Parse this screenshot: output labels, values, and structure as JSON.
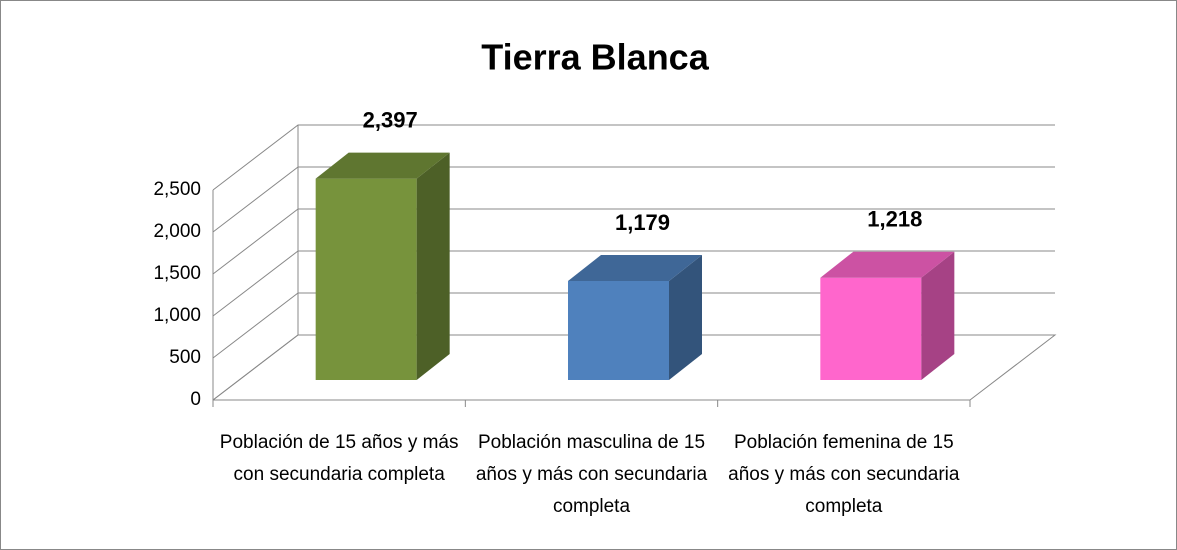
{
  "chart_data": {
    "type": "bar3d",
    "title": "Tierra Blanca",
    "categories": [
      "Población de 15 años y más con secundaria completa",
      "Población masculina de 15 años y más con secundaria completa",
      "Población femenina de 15 años y más con secundaria completa"
    ],
    "values": [
      2397,
      1179,
      1218
    ],
    "value_labels": [
      "2,397",
      "1,179",
      "1,218"
    ],
    "colors": [
      "#77933C",
      "#4F81BD",
      "#FF66CC"
    ],
    "ylim": [
      0,
      2500
    ],
    "yticks": [
      0,
      500,
      {
        "value": 1000,
        "label": "1,000"
      },
      {
        "value": 1500,
        "label": "1,500"
      },
      {
        "value": 2000,
        "label": "2,000"
      },
      {
        "value": 2500,
        "label": "2,500"
      }
    ],
    "grid": true
  }
}
